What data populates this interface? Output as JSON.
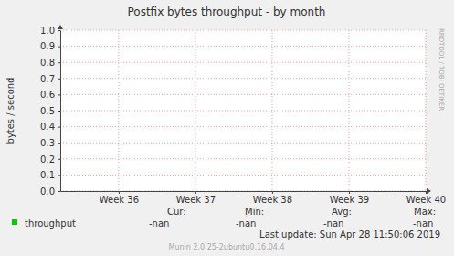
{
  "chart_data": {
    "type": "line",
    "title": "Postfix bytes throughput - by month",
    "y_label": "bytes / second",
    "xlim": [
      35.24,
      40
    ],
    "xticks": [
      {
        "value": 36,
        "label": "Week 36"
      },
      {
        "value": 37,
        "label": "Week 37"
      },
      {
        "value": 38,
        "label": "Week 38"
      },
      {
        "value": 39,
        "label": "Week 39"
      },
      {
        "value": 40,
        "label": "Week 40"
      }
    ],
    "ylim": [
      0,
      1
    ],
    "yticks": [
      {
        "value": 0,
        "label": "0.0"
      },
      {
        "value": 0.1,
        "label": "0.1"
      },
      {
        "value": 0.2,
        "label": "0.2"
      },
      {
        "value": 0.3,
        "label": "0.3"
      },
      {
        "value": 0.4,
        "label": "0.4"
      },
      {
        "value": 0.5,
        "label": "0.5"
      },
      {
        "value": 0.6,
        "label": "0.6"
      },
      {
        "value": 0.7,
        "label": "0.7"
      },
      {
        "value": 0.8,
        "label": "0.8"
      },
      {
        "value": 0.9,
        "label": "0.9"
      },
      {
        "value": 1,
        "label": "1.0"
      }
    ],
    "grid": true,
    "x": [],
    "series": [
      {
        "name": "throughput",
        "color": "#00cc00",
        "values": [],
        "summary": [
          "-nan",
          "-nan",
          "-nan",
          "-nan"
        ]
      }
    ],
    "legend_columns": [
      "Cur:",
      "Min:",
      "Avg:",
      "Max:"
    ],
    "last_update": "Last update:  Sun Apr 28 11:50:06 2019",
    "watermark": "RRDTOOL / TOBI OETIKER",
    "footer": "Munin 2.0.25-2ubuntu0.16.04.4"
  }
}
